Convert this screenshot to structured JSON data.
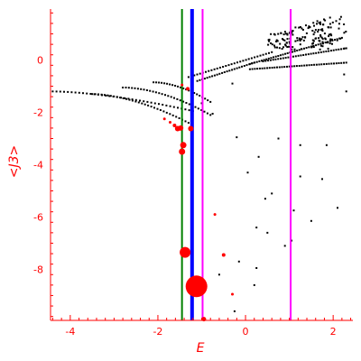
{
  "chart_data": {
    "type": "scatter",
    "xlabel": "E",
    "ylabel": "<J3>",
    "xlim": [
      -4.45,
      2.45
    ],
    "ylim": [
      -9.95,
      1.95
    ],
    "x_ticks": [
      -4,
      -2,
      0,
      2
    ],
    "y_ticks": [
      0,
      -2,
      -4,
      -6,
      -8
    ],
    "x_tick_labels": [
      "-4",
      "-2",
      "0",
      "2"
    ],
    "y_tick_labels": [
      "0",
      "-2",
      "-4",
      "-6",
      "-8"
    ],
    "colors": {
      "axis": "#ff0000",
      "black_points": "#000000",
      "red_points": "#ff0000",
      "green_line": "#008000",
      "blue_line": "#0000ff",
      "magenta_line": "#ff00ff"
    },
    "vertical_lines": [
      {
        "x": -1.45,
        "color": "#008000",
        "width": "thin"
      },
      {
        "x": -1.22,
        "color": "#0000ff",
        "width": "thick"
      },
      {
        "x": -0.98,
        "color": "#ff00ff",
        "width": "thin"
      },
      {
        "x": 1.03,
        "color": "#ff00ff",
        "width": "thin"
      }
    ],
    "red_points": [
      {
        "x": -1.12,
        "y": -8.65,
        "size": 12
      },
      {
        "x": -1.38,
        "y": -7.35,
        "size": 6
      },
      {
        "x": -1.45,
        "y": -3.5,
        "size": 3.5
      },
      {
        "x": -1.42,
        "y": -3.25,
        "size": 3.5
      },
      {
        "x": -1.55,
        "y": -2.62,
        "size": 3
      },
      {
        "x": -1.48,
        "y": -2.6,
        "size": 3
      },
      {
        "x": -1.25,
        "y": -2.62,
        "size": 3
      },
      {
        "x": -1.62,
        "y": -2.5,
        "size": 2
      },
      {
        "x": -1.72,
        "y": -2.38,
        "size": 1.5
      },
      {
        "x": -1.85,
        "y": -2.25,
        "size": 1.5
      },
      {
        "x": -1.32,
        "y": -1.1,
        "size": 2
      },
      {
        "x": -1.45,
        "y": -0.95,
        "size": 1.5
      },
      {
        "x": -0.7,
        "y": -5.9,
        "size": 1.5
      },
      {
        "x": -0.5,
        "y": -7.45,
        "size": 2
      },
      {
        "x": -0.3,
        "y": -8.95,
        "size": 1.5
      },
      {
        "x": -0.95,
        "y": -9.9,
        "size": 2.5
      }
    ],
    "black_series": {
      "branches": [
        {
          "x0": -4.4,
          "y0": -1.2,
          "x1": -1.2,
          "y1": -1.95,
          "n": 38,
          "power": 1.6
        },
        {
          "x0": -3.5,
          "y0": -1.3,
          "x1": -1.3,
          "y1": -2.4,
          "n": 32,
          "power": 1.7
        },
        {
          "x0": -2.8,
          "y0": -1.05,
          "x1": -0.8,
          "y1": -2.1,
          "n": 30,
          "power": 1.8
        },
        {
          "x0": -2.1,
          "y0": -0.85,
          "x1": -0.8,
          "y1": -1.6,
          "n": 22,
          "power": 1.8
        },
        {
          "x0": -1.3,
          "y0": -0.65,
          "x1": 0.6,
          "y1": 0.3,
          "n": 30,
          "power": 1.0
        },
        {
          "x0": -1.1,
          "y0": -0.8,
          "x1": 0.2,
          "y1": -0.1,
          "n": 24,
          "power": 1.0
        },
        {
          "x0": 0.1,
          "y0": -0.15,
          "x1": 2.2,
          "y1": 0.85,
          "n": 40,
          "power": 1.0
        },
        {
          "x0": 0.1,
          "y0": -0.35,
          "x1": 2.3,
          "y1": -0.1,
          "n": 40,
          "power": 1.0
        },
        {
          "x0": 0.4,
          "y0": -0.05,
          "x1": 2.3,
          "y1": 0.45,
          "n": 34,
          "power": 1.0
        }
      ],
      "cloud": {
        "x": [
          0.5,
          2.3
        ],
        "y": [
          0.4,
          1.8
        ],
        "n": 150
      },
      "scatter": [
        {
          "x": -0.2,
          "y": -2.95
        },
        {
          "x": 0.05,
          "y": -4.3
        },
        {
          "x": 0.25,
          "y": -6.4
        },
        {
          "x": 0.6,
          "y": -5.1
        },
        {
          "x": 0.9,
          "y": -7.1
        },
        {
          "x": 1.1,
          "y": -5.75
        },
        {
          "x": 0.25,
          "y": -7.95
        },
        {
          "x": 0.45,
          "y": -5.3
        },
        {
          "x": 0.75,
          "y": -3.0
        },
        {
          "x": 1.25,
          "y": -4.45
        },
        {
          "x": 1.5,
          "y": -6.15
        },
        {
          "x": 1.75,
          "y": -4.55
        },
        {
          "x": 1.85,
          "y": -3.25
        },
        {
          "x": 2.1,
          "y": -5.65
        },
        {
          "x": 2.25,
          "y": -0.55
        },
        {
          "x": -0.6,
          "y": -8.2
        },
        {
          "x": -0.15,
          "y": -7.7
        },
        {
          "x": -0.25,
          "y": -9.6
        },
        {
          "x": 0.5,
          "y": -6.6
        },
        {
          "x": 1.25,
          "y": -3.25
        },
        {
          "x": 0.2,
          "y": -8.6
        },
        {
          "x": -1.0,
          "y": -1.65
        },
        {
          "x": -0.75,
          "y": -2.05
        },
        {
          "x": -0.3,
          "y": -0.9
        },
        {
          "x": 1.05,
          "y": -6.9
        },
        {
          "x": 2.3,
          "y": -1.2
        },
        {
          "x": 0.3,
          "y": -3.7
        }
      ]
    }
  }
}
